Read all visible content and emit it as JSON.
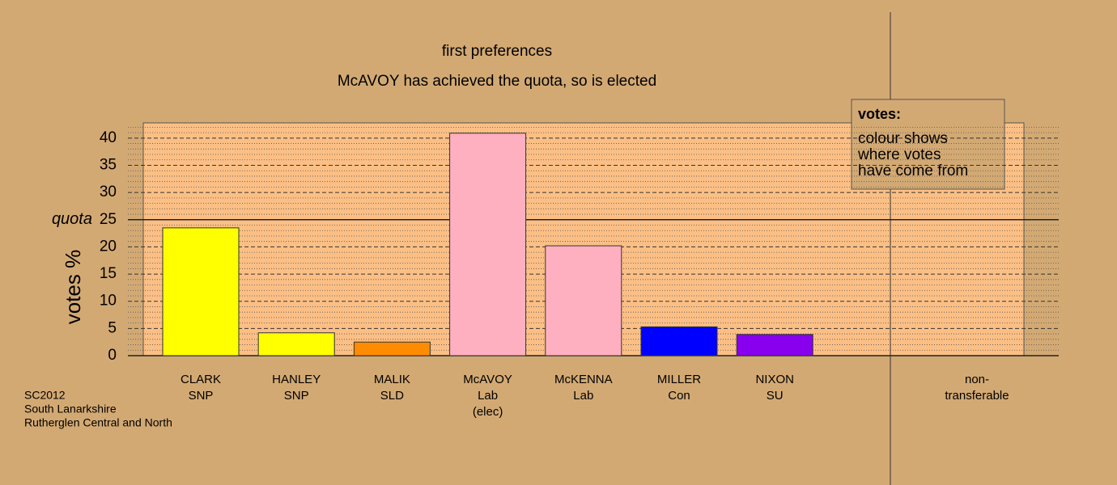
{
  "chart_data": {
    "type": "bar",
    "title": "first preferences",
    "subtitle": "McAVOY has achieved the quota, so is elected",
    "ylabel": "votes %",
    "categories": [
      [
        "CLARK",
        "SNP"
      ],
      [
        "HANLEY",
        "SNP"
      ],
      [
        "MALIK",
        "SLD"
      ],
      [
        "McAVOY",
        "Lab",
        "(elec)"
      ],
      [
        "McKENNA",
        "Lab"
      ],
      [
        "MILLER",
        "Con"
      ],
      [
        "NIXON",
        "SU"
      ],
      [
        "non-",
        "transferable"
      ]
    ],
    "values": [
      23.5,
      4.2,
      2.5,
      40.9,
      20.2,
      5.3,
      3.9,
      0
    ],
    "colors": [
      "#ffff00",
      "#ffff00",
      "#ff8c00",
      "#ffb0c0",
      "#ffb0c0",
      "#0000ff",
      "#8800ee",
      null
    ],
    "ylim": [
      0,
      42.8
    ],
    "yticks": [
      0,
      5,
      10,
      15,
      20,
      25,
      30,
      35,
      40
    ],
    "grid": true,
    "quota": {
      "value": 25,
      "label": "quota"
    },
    "legend": {
      "title": "votes:",
      "lines": [
        "colour shows",
        "where votes",
        "have come from"
      ]
    },
    "footer": [
      "SC2012",
      "South Lanarkshire",
      "Rutherglen Central and North"
    ]
  }
}
